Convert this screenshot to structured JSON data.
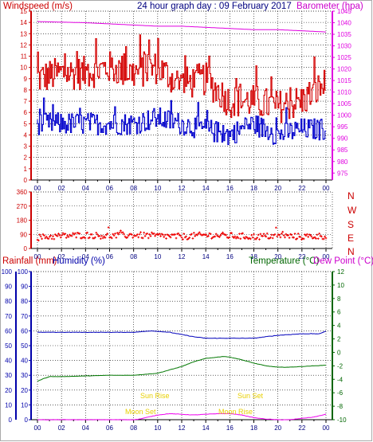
{
  "header": {
    "left_title": "Windspeed (m/s)",
    "center_title": "24 hour graph day : 09 February 2017",
    "right_title": "Barometer (hpa)"
  },
  "bottom_header": {
    "rainfall": "Rainfall (mm)",
    "humidity": "Humidity (%)",
    "temperature": "Temperature (°C)",
    "dewpoint": "Dew Point (°C)"
  },
  "direction_labels": [
    "N",
    "W",
    "S",
    "E",
    "N"
  ],
  "annotations": {
    "sun_rise": "Sun Rise",
    "sun_set": "Sun Set",
    "moon_set": "Moon Set",
    "moon_rise": "Moon Rise"
  },
  "colors": {
    "windspeed": "#d40000",
    "gust": "#d40000",
    "avg_wind": "#0000cc",
    "barometer": "#e000e0",
    "direction": "#ee0000",
    "humidity": "#0000bb",
    "temperature": "#007700",
    "dewpoint": "#ee00ee",
    "annotation": "#e8d000",
    "grid": "#000000"
  },
  "chart_data": [
    {
      "type": "line",
      "x_ticks": [
        "00",
        "02",
        "04",
        "06",
        "08",
        "10",
        "12",
        "14",
        "16",
        "18",
        "20",
        "22",
        "00"
      ],
      "y_left": {
        "label": "Windspeed (m/s)",
        "ticks": [
          0,
          1,
          2,
          3,
          4,
          5,
          6,
          7,
          8,
          9,
          10,
          11,
          12,
          13,
          14,
          15
        ],
        "ylim": [
          0,
          15
        ]
      },
      "y_right": {
        "label": "Barometer (hpa)",
        "ticks": [
          975,
          980,
          985,
          990,
          995,
          1000,
          1005,
          1010,
          1015,
          1020,
          1025,
          1030,
          1035,
          1040,
          1045
        ],
        "ylim": [
          972,
          1045
        ]
      },
      "series": [
        {
          "name": "Windspeed (m/s)",
          "axis": "left",
          "x": [
            0,
            2,
            4,
            6,
            8,
            10,
            12,
            14,
            16,
            18,
            20,
            22,
            24
          ],
          "values": [
            9,
            9.5,
            9.5,
            10,
            9.5,
            10,
            8.5,
            9,
            7,
            7,
            6.5,
            7,
            8.5
          ]
        },
        {
          "name": "avg",
          "axis": "left",
          "x": [
            0,
            2,
            4,
            6,
            8,
            10,
            12,
            14,
            16,
            18,
            20,
            22,
            24
          ],
          "values": [
            5,
            5,
            5,
            5,
            5,
            5.5,
            5,
            4.5,
            4,
            5,
            4,
            4.5,
            4.5
          ]
        },
        {
          "name": "Barometer (hpa)",
          "axis": "right",
          "x": [
            0,
            4,
            6,
            8,
            10,
            12,
            14,
            16,
            18,
            20,
            22,
            24
          ],
          "values": [
            1040.5,
            1040,
            1039.5,
            1039,
            1038.5,
            1038.5,
            1038,
            1037.5,
            1037,
            1037,
            1036.5,
            1036
          ]
        }
      ],
      "grid": true
    },
    {
      "type": "scatter",
      "x_ticks": [
        "00",
        "02",
        "04",
        "06",
        "08",
        "10",
        "12",
        "14",
        "16",
        "18",
        "20",
        "22",
        "00"
      ],
      "y_left": {
        "ticks": [
          0,
          45,
          90,
          135,
          180,
          225,
          270,
          315,
          360
        ],
        "ylim": [
          0,
          360
        ]
      },
      "y_right_labels": [
        "N",
        "W",
        "S",
        "E",
        "N"
      ],
      "series": [
        {
          "name": "wind direction",
          "x": [
            0,
            2,
            4,
            6,
            8,
            10,
            12,
            14,
            16,
            18,
            20,
            22,
            24
          ],
          "values": [
            70,
            80,
            85,
            80,
            85,
            80,
            75,
            85,
            80,
            75,
            80,
            75,
            80
          ]
        }
      ],
      "grid": true
    },
    {
      "type": "line",
      "x_ticks": [
        "00",
        "02",
        "04",
        "06",
        "08",
        "10",
        "12",
        "14",
        "16",
        "18",
        "20",
        "22",
        "00"
      ],
      "y_left": {
        "label": "Rainfall (mm)",
        "ticks": [
          0,
          10,
          20,
          30,
          40,
          50,
          60,
          70,
          80,
          90,
          100
        ],
        "ylim": [
          0,
          100
        ]
      },
      "y_left2": {
        "label": "Humidity (%)",
        "ticks": [
          0,
          10,
          20,
          30,
          40,
          50,
          60,
          70,
          80,
          90,
          100
        ],
        "ylim": [
          0,
          100
        ]
      },
      "y_right": {
        "label": "Temperature (°C) / Dew Point (°C)",
        "ticks": [
          -10,
          -8,
          -6,
          -4,
          -2,
          0,
          2,
          4,
          6,
          8,
          10,
          12
        ],
        "ylim": [
          -10,
          12
        ]
      },
      "series": [
        {
          "name": "Humidity (%)",
          "axis": "left",
          "x": [
            0,
            2,
            4,
            6,
            8,
            9.5,
            11,
            13,
            14,
            16,
            18,
            20,
            22,
            23.5,
            24
          ],
          "values": [
            59,
            59,
            59,
            59,
            59,
            60,
            59,
            56,
            55,
            55,
            55,
            57,
            58,
            58,
            60
          ]
        },
        {
          "name": "Temperature (°C)",
          "axis": "right",
          "x": [
            0,
            0.5,
            1,
            2,
            4,
            6,
            8,
            10,
            12,
            13,
            14,
            15,
            15.5,
            16,
            17,
            18,
            19,
            20,
            21,
            22,
            23,
            24
          ],
          "values": [
            -4.3,
            -3.9,
            -3.6,
            -3.6,
            -3.5,
            -3.4,
            -3.4,
            -3.1,
            -2.1,
            -1.4,
            -0.9,
            -0.7,
            -0.6,
            -0.7,
            -1.1,
            -1.6,
            -2.0,
            -2.2,
            -2.2,
            -2.1,
            -2.0,
            -1.9
          ]
        },
        {
          "name": "Dew Point (°C)",
          "axis": "right",
          "x": [
            0,
            2,
            4,
            6,
            8,
            8.5,
            9,
            10,
            11,
            12,
            13,
            14,
            15,
            16,
            17,
            18,
            19,
            20,
            21,
            22,
            23,
            24
          ],
          "values": [
            -10,
            -10,
            -10,
            -10,
            -10,
            -9.9,
            -9.7,
            -9.3,
            -9.1,
            -9.2,
            -9.3,
            -9.2,
            -9.1,
            -9.1,
            -9.3,
            -9.7,
            -9.9,
            -10,
            -10,
            -9.8,
            -9.6,
            -9.2
          ]
        }
      ],
      "events": [
        {
          "text": "Sun Rise",
          "x": 8.5
        },
        {
          "text": "Sun Set",
          "x": 16.2
        },
        {
          "text": "Moon Set",
          "x": 7.6
        },
        {
          "text": "Moon Rise",
          "x": 16.0
        }
      ],
      "grid": true
    }
  ]
}
